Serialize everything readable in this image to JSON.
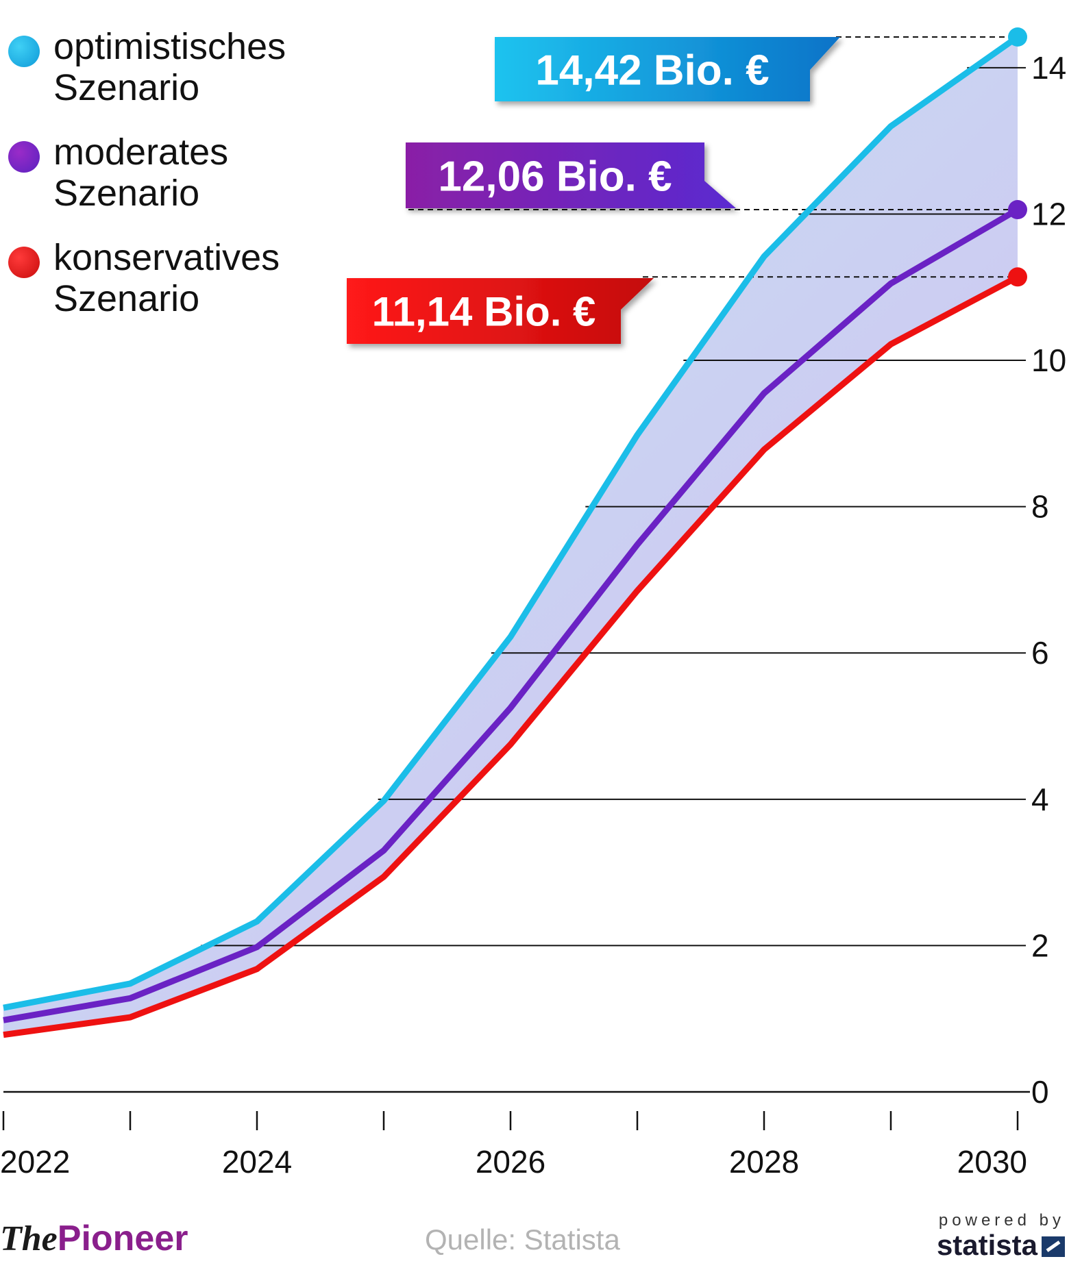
{
  "legend": [
    {
      "label": "optimistisches\nSzenario",
      "color": "#1bbde8"
    },
    {
      "label": "moderates\nSzenario",
      "color": "#6a22c4"
    },
    {
      "label": "konservatives\nSzenario",
      "color": "#ee1111"
    }
  ],
  "callouts": {
    "optimistic": "14,42 Bio. €",
    "moderate": "12,06 Bio. €",
    "conservative": "11,14 Bio. €"
  },
  "footer": {
    "logo_the": "The",
    "logo_pioneer": "Pioneer",
    "source": "Quelle: Statista",
    "powered_by": "powered by",
    "brand": "statista"
  },
  "colors": {
    "optimistic": "#1bbde8",
    "moderate": "#6a22c4",
    "conservative": "#ee1111",
    "callout_optimistic_start": "#1ec3ef",
    "callout_optimistic_end": "#0a73c8",
    "callout_moderate_start": "#8a1fa6",
    "callout_moderate_end": "#5a2ad0",
    "callout_conservative_start": "#ff1a1a",
    "callout_conservative_end": "#c40c0c",
    "band_top": "#bfe6f6",
    "band_bottom": "#cbb4ec"
  },
  "chart_data": {
    "type": "line",
    "title": "",
    "xlabel": "",
    "ylabel": "",
    "x": [
      2022,
      2023,
      2024,
      2025,
      2026,
      2027,
      2028,
      2029,
      2030
    ],
    "xticks": [
      2022,
      2023,
      2024,
      2025,
      2026,
      2027,
      2028,
      2029,
      2030
    ],
    "xtick_labels": [
      "2022",
      "",
      "2024",
      "",
      "2026",
      "",
      "2028",
      "",
      "2030"
    ],
    "yticks": [
      0,
      2,
      4,
      6,
      8,
      10,
      12,
      14
    ],
    "ytick_labels": [
      "0",
      "2",
      "4",
      "6",
      "8",
      "10",
      "12",
      "14"
    ],
    "xlim": [
      2022,
      2030
    ],
    "ylim": [
      0,
      14.42
    ],
    "grid": true,
    "legend_position": "top-left",
    "series": [
      {
        "name": "optimistisches Szenario",
        "key": "optimistic",
        "values": [
          1.15,
          1.48,
          2.33,
          3.98,
          6.22,
          8.98,
          11.42,
          13.2,
          14.42
        ]
      },
      {
        "name": "moderates Szenario",
        "key": "moderate",
        "values": [
          0.98,
          1.28,
          1.98,
          3.3,
          5.25,
          7.48,
          9.55,
          11.05,
          12.06
        ]
      },
      {
        "name": "konservatives Szenario",
        "key": "conservative",
        "values": [
          0.78,
          1.02,
          1.68,
          2.94,
          4.75,
          6.85,
          8.78,
          10.22,
          11.14
        ]
      }
    ]
  }
}
